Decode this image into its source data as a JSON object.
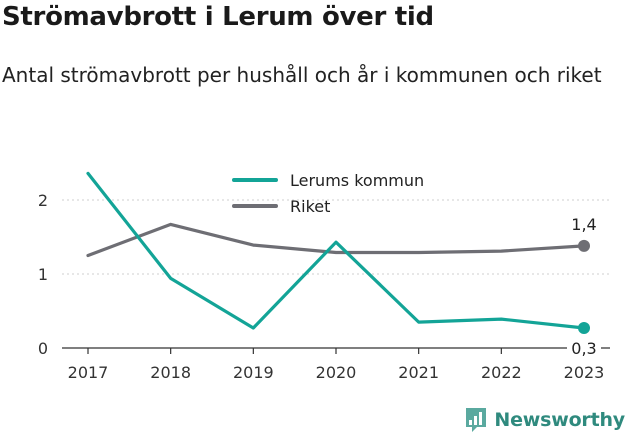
{
  "title": "Strömavbrott i Lerum över tid",
  "subtitle": "Antal strömavbrott per hushåll och år i kommunen och riket",
  "brand": {
    "name": "Newsworthy"
  },
  "chart_data": {
    "type": "line",
    "categories": [
      "2017",
      "2018",
      "2019",
      "2020",
      "2021",
      "2022",
      "2023"
    ],
    "yticks": [
      "0",
      "1",
      "2"
    ],
    "ylim": [
      0,
      2.5
    ],
    "legend_position": "top",
    "series": [
      {
        "name": "Lerums kommun",
        "color": "#13a497",
        "values": [
          2.36,
          0.94,
          0.27,
          1.43,
          0.35,
          0.39,
          0.27
        ],
        "end_label": "0,3"
      },
      {
        "name": "Riket",
        "color": "#6e6e74",
        "values": [
          1.25,
          1.67,
          1.39,
          1.29,
          1.29,
          1.31,
          1.38
        ],
        "end_label": "1,4"
      }
    ]
  }
}
